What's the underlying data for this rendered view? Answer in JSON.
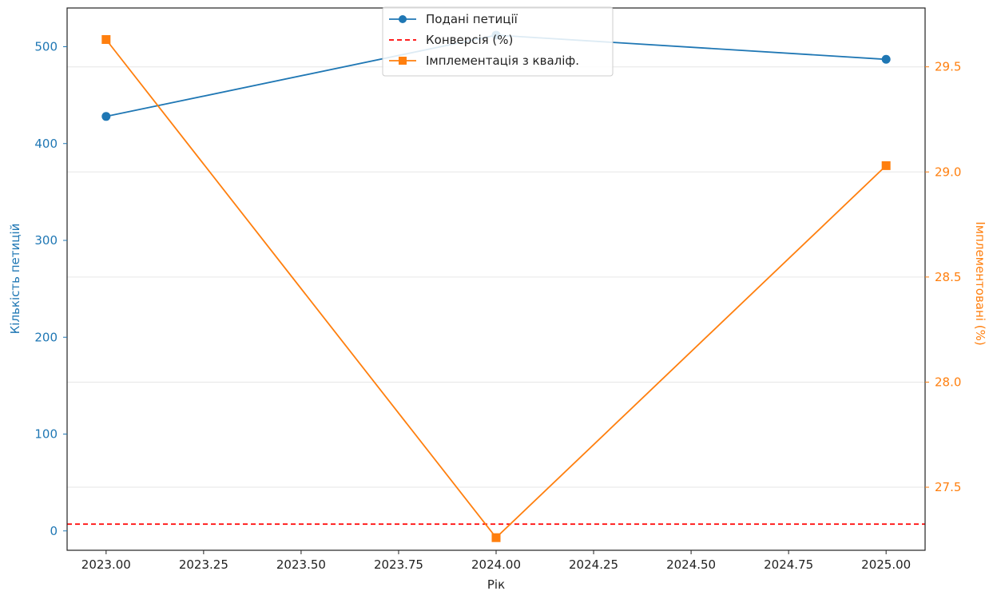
{
  "chart_data": {
    "type": "line",
    "x": [
      2023,
      2024,
      2025
    ],
    "xlabel": "Рік",
    "ylabel_left": "Кількість петицій",
    "ylabel_right": "Імплементовані (%)",
    "xlim": [
      2022.9,
      2025.1
    ],
    "xticks": [
      2023.0,
      2023.25,
      2023.5,
      2023.75,
      2024.0,
      2024.25,
      2024.5,
      2024.75,
      2025.0
    ],
    "xtick_labels": [
      "2023.00",
      "2023.25",
      "2023.50",
      "2023.75",
      "2024.00",
      "2024.25",
      "2024.50",
      "2024.75",
      "2025.00"
    ],
    "ylim_left": [
      -20,
      540
    ],
    "yticks_left": [
      0,
      100,
      200,
      300,
      400,
      500
    ],
    "ylim_right": [
      27.2,
      29.78
    ],
    "yticks_right": [
      27.5,
      28.0,
      28.5,
      29.0,
      29.5
    ],
    "ytick_labels_right": [
      "27.5",
      "28.0",
      "28.5",
      "29.0",
      "29.5"
    ],
    "grid": "horizontal",
    "legend_position": "top-center",
    "series": [
      {
        "name": "Подані петиції",
        "axis": "left",
        "values": [
          428,
          512,
          487
        ],
        "color": "#1f77b4",
        "style": "solid",
        "marker": "circle"
      },
      {
        "name": "Конверсія (%)",
        "axis": "left",
        "values": [
          7,
          7,
          7
        ],
        "color": "#ff0000",
        "style": "dashed",
        "marker": "none"
      },
      {
        "name": "Імплементація з кваліф.",
        "axis": "right",
        "values": [
          29.63,
          27.26,
          29.03
        ],
        "color": "#ff7f0e",
        "style": "solid",
        "marker": "square"
      }
    ],
    "colors": {
      "left_axis": "#1f77b4",
      "right_axis": "#ff7f0e"
    }
  }
}
